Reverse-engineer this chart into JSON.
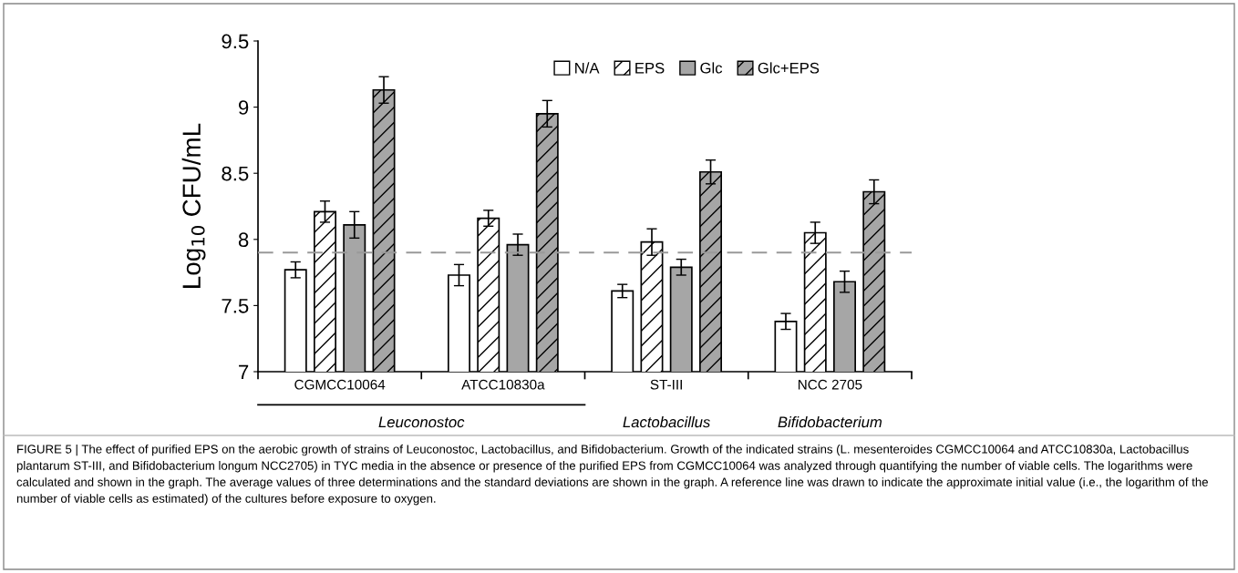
{
  "chart_data": {
    "type": "bar",
    "ylabel": "Log$_{10}$ CFU/mL",
    "categories": [
      "CGMCC10064",
      "ATCC10830a",
      "ST-III",
      "NCC 2705"
    ],
    "series": [
      {
        "name": "N/A",
        "color": "#ffffff",
        "values": [
          7.77,
          7.73,
          7.61,
          7.38
        ],
        "errors": [
          0.06,
          0.08,
          0.05,
          0.06
        ]
      },
      {
        "name": "EPS",
        "color": "#ffffff",
        "values": [
          8.21,
          8.16,
          7.98,
          8.05
        ],
        "errors": [
          0.08,
          0.06,
          0.1,
          0.08
        ]
      },
      {
        "name": "Glc",
        "color": "#a6a6a6",
        "values": [
          8.11,
          7.96,
          7.79,
          7.68
        ],
        "errors": [
          0.1,
          0.08,
          0.06,
          0.08
        ]
      },
      {
        "name": "Glc+EPS",
        "color": "#a6a6a6",
        "values": [
          9.13,
          8.95,
          8.51,
          8.36
        ],
        "errors": [
          0.1,
          0.1,
          0.09,
          0.09
        ]
      }
    ],
    "ylim": [
      7,
      9.5
    ],
    "yticks": [
      7,
      7.5,
      8,
      8.5,
      9,
      9.5
    ],
    "grid": false,
    "legend": "top right",
    "ref_lines": [
      {
        "axis": "y",
        "value": 7.9,
        "color": "#999999",
        "line_style": "dashed"
      }
    ],
    "annotations": [
      "Leuconostoc",
      "Lactobacillus",
      "Bifidobacterium",
      "FIGURE 5 | The effect of purified EPS on the aerobic growth of strains of Leuconostoc, Lactobacillus, and Bifidobacterium. Growth of the indicated strains (L. mesenteroides CGMCC10064 and ATCC10830a, Lactobacillus plantarum ST-III, and Bifidobacterium longum NCC2705) in TYC media in the absence or presence of the purified EPS from CGMCC10064 was analyzed through quantifying the number of viable cells. The logarithms were calculated and shown in the graph. The average values of three determinations and the standard deviations are shown in the graph. A reference line was drawn to indicate the approximate initial value (i.e., the logarithm of the number of viable cells as estimated) of the cultures before exposure to oxygen."
    ]
  }
}
